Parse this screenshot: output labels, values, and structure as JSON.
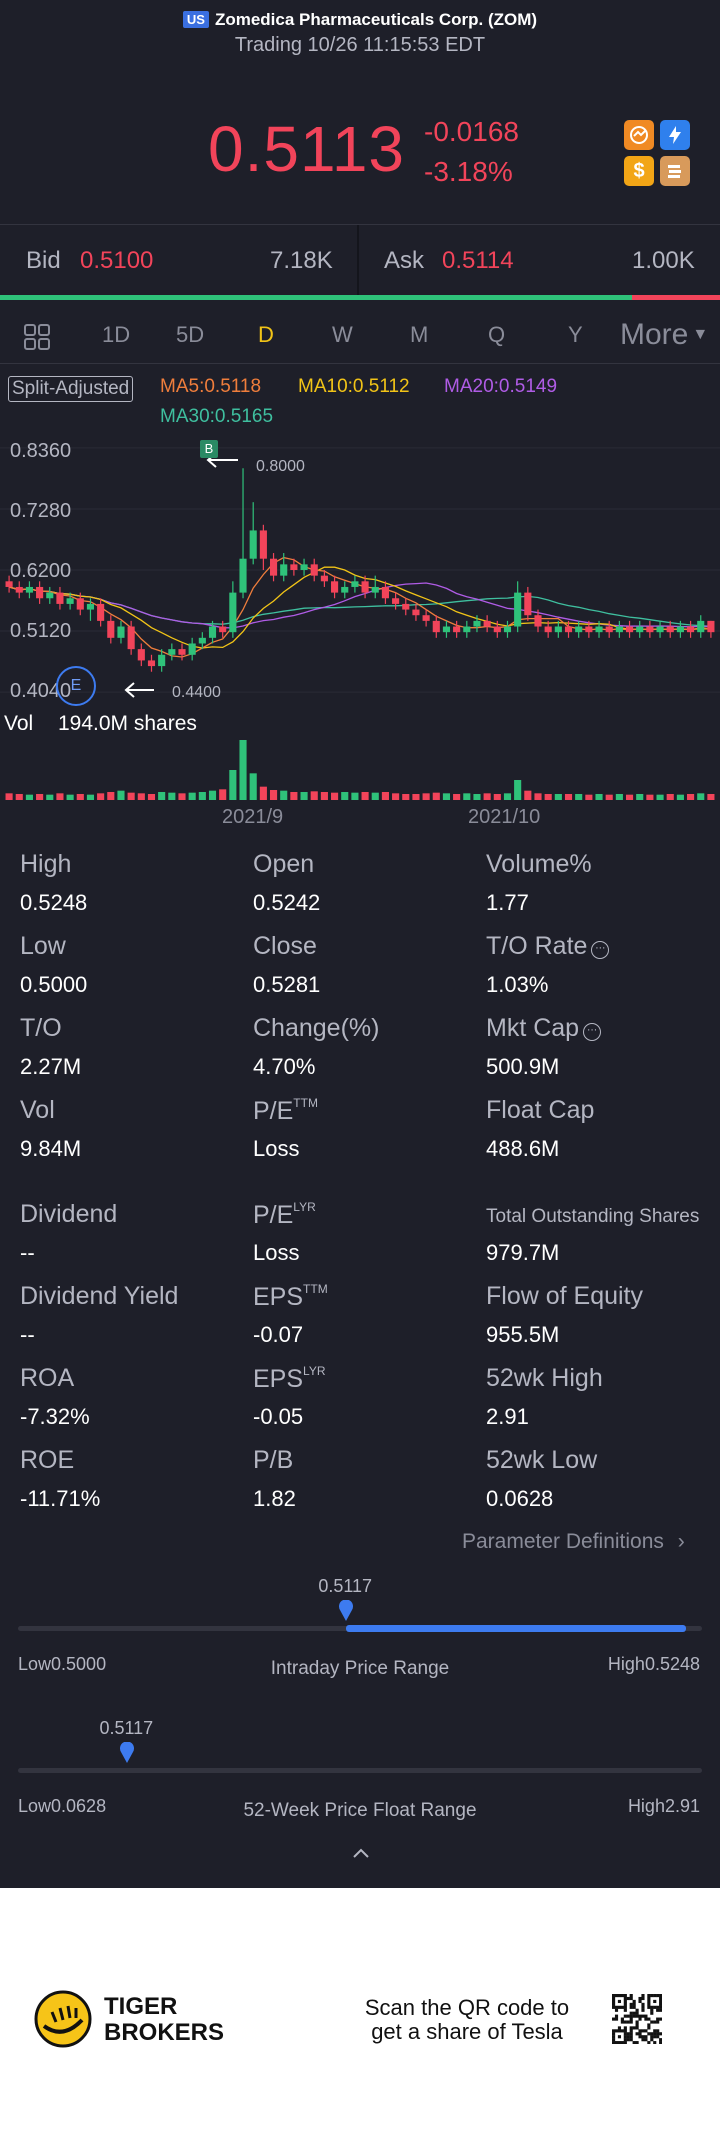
{
  "header": {
    "market": "US",
    "title": "Zomedica Pharmaceuticals Corp. (ZOM)",
    "status": "Trading 10/26 11:15:53 EDT"
  },
  "quote": {
    "price": "0.5113",
    "change": "-0.0168",
    "change_pct": "-3.18%",
    "colors": {
      "down": "#f2445a",
      "up": "#2fc27a"
    }
  },
  "header_icons": [
    "options-icon",
    "flash-icon",
    "dollar-icon",
    "books-icon"
  ],
  "bid_ask": {
    "bid_label": "Bid",
    "bid_price": "0.5100",
    "bid_size": "7.18K",
    "ask_label": "Ask",
    "ask_price": "0.5114",
    "ask_size": "1.00K",
    "bid_share": 0.88
  },
  "tabs": [
    "1D",
    "5D",
    "D",
    "W",
    "M",
    "Q",
    "Y"
  ],
  "active_tab": "D",
  "more_label": "More",
  "chart_legend": {
    "adjust": "Split-Adjusted",
    "ma5": "MA5:0.5118",
    "ma10": "MA10:0.5112",
    "ma20": "MA20:0.5149",
    "ma30": "MA30:0.5165",
    "colors": {
      "ma5": "#f07e3c",
      "ma10": "#f2c417",
      "ma20": "#b05ce6",
      "ma30": "#3fbf9f"
    }
  },
  "chart_data": {
    "type": "candlestick",
    "y_ticks": [
      "0.8360",
      "0.7280",
      "0.6200",
      "0.5120",
      "0.4040"
    ],
    "ylim": [
      0.39,
      0.85
    ],
    "x_ticks": [
      "2021/9",
      "2021/10"
    ],
    "max_annotation": "0.8000",
    "min_annotation": "0.4400",
    "marker_b": "B",
    "marker_e": "E",
    "volume_label": "Vol",
    "volume_value": "194.0M shares",
    "candles": [
      [
        0.6,
        0.59,
        0.61,
        0.58
      ],
      [
        0.59,
        0.58,
        0.6,
        0.57
      ],
      [
        0.58,
        0.59,
        0.6,
        0.57
      ],
      [
        0.59,
        0.57,
        0.6,
        0.56
      ],
      [
        0.57,
        0.58,
        0.59,
        0.56
      ],
      [
        0.58,
        0.56,
        0.59,
        0.55
      ],
      [
        0.56,
        0.57,
        0.58,
        0.55
      ],
      [
        0.57,
        0.55,
        0.58,
        0.54
      ],
      [
        0.55,
        0.56,
        0.57,
        0.53
      ],
      [
        0.56,
        0.53,
        0.57,
        0.52
      ],
      [
        0.53,
        0.5,
        0.54,
        0.49
      ],
      [
        0.5,
        0.52,
        0.53,
        0.49
      ],
      [
        0.52,
        0.48,
        0.53,
        0.47
      ],
      [
        0.48,
        0.46,
        0.49,
        0.45
      ],
      [
        0.46,
        0.45,
        0.47,
        0.44
      ],
      [
        0.45,
        0.47,
        0.48,
        0.44
      ],
      [
        0.47,
        0.48,
        0.49,
        0.46
      ],
      [
        0.48,
        0.47,
        0.49,
        0.46
      ],
      [
        0.47,
        0.49,
        0.5,
        0.46
      ],
      [
        0.49,
        0.5,
        0.51,
        0.48
      ],
      [
        0.5,
        0.52,
        0.53,
        0.49
      ],
      [
        0.52,
        0.51,
        0.53,
        0.5
      ],
      [
        0.51,
        0.58,
        0.6,
        0.5
      ],
      [
        0.58,
        0.64,
        0.8,
        0.57
      ],
      [
        0.64,
        0.69,
        0.74,
        0.63
      ],
      [
        0.69,
        0.64,
        0.7,
        0.62
      ],
      [
        0.64,
        0.61,
        0.65,
        0.6
      ],
      [
        0.61,
        0.63,
        0.65,
        0.6
      ],
      [
        0.63,
        0.62,
        0.64,
        0.61
      ],
      [
        0.62,
        0.63,
        0.64,
        0.61
      ],
      [
        0.63,
        0.61,
        0.64,
        0.6
      ],
      [
        0.61,
        0.6,
        0.62,
        0.59
      ],
      [
        0.6,
        0.58,
        0.61,
        0.57
      ],
      [
        0.58,
        0.59,
        0.6,
        0.57
      ],
      [
        0.59,
        0.6,
        0.61,
        0.58
      ],
      [
        0.6,
        0.58,
        0.61,
        0.57
      ],
      [
        0.58,
        0.59,
        0.61,
        0.57
      ],
      [
        0.59,
        0.57,
        0.6,
        0.56
      ],
      [
        0.57,
        0.56,
        0.58,
        0.55
      ],
      [
        0.56,
        0.55,
        0.57,
        0.54
      ],
      [
        0.55,
        0.54,
        0.56,
        0.53
      ],
      [
        0.54,
        0.53,
        0.55,
        0.52
      ],
      [
        0.53,
        0.51,
        0.54,
        0.5
      ],
      [
        0.51,
        0.52,
        0.53,
        0.5
      ],
      [
        0.52,
        0.51,
        0.53,
        0.5
      ],
      [
        0.51,
        0.52,
        0.53,
        0.5
      ],
      [
        0.52,
        0.53,
        0.54,
        0.51
      ],
      [
        0.53,
        0.52,
        0.54,
        0.51
      ],
      [
        0.52,
        0.51,
        0.53,
        0.5
      ],
      [
        0.51,
        0.52,
        0.53,
        0.5
      ],
      [
        0.52,
        0.58,
        0.6,
        0.51
      ],
      [
        0.58,
        0.54,
        0.59,
        0.53
      ],
      [
        0.54,
        0.52,
        0.55,
        0.51
      ],
      [
        0.52,
        0.51,
        0.53,
        0.5
      ],
      [
        0.51,
        0.52,
        0.53,
        0.5
      ],
      [
        0.52,
        0.51,
        0.53,
        0.5
      ],
      [
        0.51,
        0.52,
        0.53,
        0.5
      ],
      [
        0.52,
        0.51,
        0.53,
        0.5
      ],
      [
        0.51,
        0.52,
        0.53,
        0.5
      ],
      [
        0.52,
        0.51,
        0.53,
        0.5
      ],
      [
        0.51,
        0.52,
        0.53,
        0.5
      ],
      [
        0.52,
        0.51,
        0.53,
        0.5
      ],
      [
        0.51,
        0.52,
        0.53,
        0.5
      ],
      [
        0.52,
        0.51,
        0.53,
        0.5
      ],
      [
        0.51,
        0.52,
        0.53,
        0.5
      ],
      [
        0.52,
        0.51,
        0.53,
        0.5
      ],
      [
        0.51,
        0.52,
        0.53,
        0.5
      ],
      [
        0.52,
        0.51,
        0.53,
        0.5
      ],
      [
        0.51,
        0.53,
        0.54,
        0.5
      ],
      [
        0.53,
        0.51,
        0.53,
        0.5
      ]
    ],
    "volumes": [
      10,
      9,
      8,
      9,
      8,
      10,
      8,
      9,
      8,
      10,
      12,
      14,
      11,
      10,
      9,
      12,
      11,
      10,
      11,
      12,
      14,
      16,
      45,
      90,
      40,
      20,
      15,
      14,
      12,
      12,
      13,
      12,
      11,
      12,
      11,
      12,
      11,
      12,
      10,
      9,
      9,
      10,
      11,
      10,
      9,
      10,
      9,
      10,
      9,
      10,
      30,
      14,
      10,
      9,
      9,
      9,
      9,
      8,
      9,
      8,
      9,
      8,
      9,
      8,
      8,
      9,
      8,
      9,
      10,
      9
    ]
  },
  "stats": [
    [
      {
        "label": "High",
        "value": "0.5248"
      },
      {
        "label": "Open",
        "value": "0.5242"
      },
      {
        "label": "Volume%",
        "value": "1.77"
      }
    ],
    [
      {
        "label": "Low",
        "value": "0.5000"
      },
      {
        "label": "Close",
        "value": "0.5281"
      },
      {
        "label": "T/O Rate",
        "value": "1.03%"
      }
    ],
    [
      {
        "label": "T/O",
        "value": "2.27M"
      },
      {
        "label": "Change(%)",
        "value": "4.70%"
      },
      {
        "label": "Mkt Cap",
        "value": "500.9M"
      }
    ],
    [
      {
        "label": "Vol",
        "value": "9.84M"
      },
      {
        "label": "P/E",
        "sup": "TTM",
        "value": "Loss"
      },
      {
        "label": "Float Cap",
        "value": "488.6M"
      }
    ],
    [
      {
        "label": "Dividend",
        "value": "--"
      },
      {
        "label": "P/E",
        "sup": "LYR",
        "value": "Loss"
      },
      {
        "label": "Total Outstanding Shares",
        "value": "979.7M"
      }
    ],
    [
      {
        "label": "Dividend Yield",
        "value": "--"
      },
      {
        "label": "EPS",
        "sup": "TTM",
        "value": "-0.07"
      },
      {
        "label": "Flow of Equity",
        "value": "955.5M"
      }
    ],
    [
      {
        "label": "ROA",
        "value": "-7.32%"
      },
      {
        "label": "EPS",
        "sup": "LYR",
        "value": "-0.05"
      },
      {
        "label": "52wk High",
        "value": "2.91"
      }
    ],
    [
      {
        "label": "ROE",
        "value": "-11.71%"
      },
      {
        "label": "P/B",
        "value": "1.82"
      },
      {
        "label": "52wk Low",
        "value": "0.0628"
      }
    ]
  ],
  "param_link": "Parameter Definitions",
  "intraday": {
    "marker": "0.5117",
    "low": "Low0.5000",
    "high": "High0.5248",
    "label": "Intraday Price Range",
    "position": 0.48
  },
  "week52": {
    "marker": "0.5117",
    "low": "Low0.0628",
    "high": "High2.91",
    "label": "52-Week Price Float Range",
    "position": 0.16
  },
  "footer": {
    "brand_line1": "TIGER",
    "brand_line2": "BROKERS",
    "scan_line1": "Scan the QR code to",
    "scan_line2": "get a share of Tesla"
  }
}
